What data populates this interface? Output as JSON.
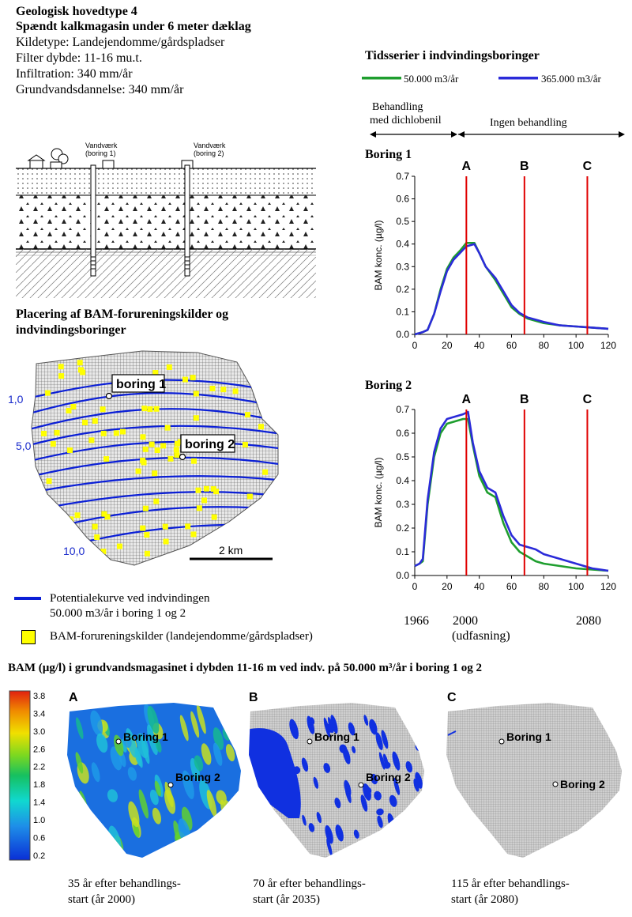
{
  "header": {
    "title1": "Geologisk hovedtype 4",
    "title2": "Spændt kalkmagasin under 6 meter dæklag",
    "kildetype": "Kildetype: Landejendomme/gårdspladser",
    "filter": "Filter dybde: 11-16 mu.t.",
    "infiltration": "Infiltration: 340 mm/år",
    "grundvand": "Grundvandsdannelse: 340 mm/år"
  },
  "profile": {
    "well1_label_a": "Vandværk",
    "well1_label_b": "(boring 1)",
    "well2_label_a": "Vandværk",
    "well2_label_b": "(boring 2)"
  },
  "map": {
    "title_line1": "Placering af BAM-forureningskilder og",
    "title_line2": "indvindingsboringer",
    "boring1": "boring 1",
    "boring2": "boring 2",
    "contour1": "1,0",
    "contour2": "5,0",
    "contour3": "10,0",
    "scale": "2 km",
    "legend_line_a": "Potentialekurve ved indvindingen",
    "legend_line_b": "50.000 m3/år i boring 1 og 2",
    "legend_square": "BAM-forureningskilder (landejendomme/gårdspladser)",
    "color_line": "#0b1fd6",
    "color_source": "#ffff00"
  },
  "ts_header": {
    "title": "Tidsserier i indvindingsboringer",
    "legend1": "50.000 m3/år",
    "legend2": "365.000 m3/år",
    "color1": "#1e9e2e",
    "color2": "#2b2bd9",
    "phase1_a": "Behandling",
    "phase1_b": "med dichlobenil",
    "phase2": "Ingen behandling",
    "year1": "1966",
    "year2": "2000",
    "year2_note": "(udfasning)",
    "year3": "2080"
  },
  "chart_data": [
    {
      "type": "line",
      "title": "Boring 1",
      "ylabel": "BAM konc. (µg/l)",
      "xlabel": "",
      "xlim": [
        0,
        120
      ],
      "ylim": [
        0,
        0.7
      ],
      "xticks": [
        "0",
        "20",
        "40",
        "60",
        "80",
        "100",
        "120"
      ],
      "yticks": [
        "0.0",
        "0.1",
        "0.2",
        "0.3",
        "0.4",
        "0.5",
        "0.6",
        "0.7"
      ],
      "markers": [
        {
          "label": "A",
          "x": 32
        },
        {
          "label": "B",
          "x": 68
        },
        {
          "label": "C",
          "x": 107
        }
      ],
      "series": [
        {
          "name": "50.000 m3/år",
          "x": [
            0,
            5,
            8,
            12,
            16,
            20,
            24,
            28,
            32,
            37,
            40,
            44,
            50,
            55,
            60,
            65,
            70,
            75,
            80,
            90,
            100,
            110,
            120
          ],
          "values": [
            0,
            0.01,
            0.02,
            0.09,
            0.2,
            0.29,
            0.34,
            0.37,
            0.405,
            0.405,
            0.36,
            0.3,
            0.24,
            0.18,
            0.12,
            0.09,
            0.07,
            0.06,
            0.05,
            0.04,
            0.035,
            0.03,
            0.025
          ]
        },
        {
          "name": "365.000 m3/år",
          "x": [
            0,
            5,
            8,
            12,
            16,
            20,
            24,
            28,
            32,
            37,
            40,
            44,
            50,
            55,
            60,
            65,
            70,
            75,
            80,
            90,
            100,
            110,
            120
          ],
          "values": [
            0,
            0.01,
            0.02,
            0.09,
            0.19,
            0.28,
            0.33,
            0.36,
            0.39,
            0.4,
            0.36,
            0.3,
            0.25,
            0.19,
            0.13,
            0.095,
            0.075,
            0.065,
            0.055,
            0.04,
            0.035,
            0.03,
            0.025
          ]
        }
      ]
    },
    {
      "type": "line",
      "title": "Boring 2",
      "ylabel": "BAM konc. (µg/l)",
      "xlabel": "",
      "xlim": [
        0,
        120
      ],
      "ylim": [
        0,
        0.7
      ],
      "xticks": [
        "0",
        "20",
        "40",
        "60",
        "80",
        "100",
        "120"
      ],
      "yticks": [
        "0.0",
        "0.1",
        "0.2",
        "0.3",
        "0.4",
        "0.5",
        "0.6",
        "0.7"
      ],
      "markers": [
        {
          "label": "A",
          "x": 32
        },
        {
          "label": "B",
          "x": 68
        },
        {
          "label": "C",
          "x": 107
        }
      ],
      "series": [
        {
          "name": "50.000 m3/år",
          "x": [
            0,
            3,
            5,
            8,
            12,
            16,
            20,
            25,
            30,
            33,
            36,
            40,
            45,
            50,
            55,
            60,
            65,
            70,
            75,
            80,
            90,
            100,
            110,
            120
          ],
          "values": [
            0.04,
            0.05,
            0.06,
            0.3,
            0.5,
            0.6,
            0.64,
            0.65,
            0.66,
            0.66,
            0.55,
            0.42,
            0.35,
            0.33,
            0.22,
            0.14,
            0.1,
            0.08,
            0.06,
            0.05,
            0.04,
            0.03,
            0.025,
            0.02
          ]
        },
        {
          "name": "365.000 m3/år",
          "x": [
            0,
            3,
            5,
            8,
            12,
            16,
            20,
            25,
            30,
            33,
            36,
            40,
            45,
            50,
            55,
            60,
            65,
            70,
            75,
            80,
            90,
            100,
            110,
            120
          ],
          "values": [
            0.04,
            0.05,
            0.07,
            0.32,
            0.52,
            0.62,
            0.66,
            0.67,
            0.68,
            0.69,
            0.56,
            0.44,
            0.37,
            0.35,
            0.25,
            0.17,
            0.13,
            0.12,
            0.11,
            0.09,
            0.07,
            0.05,
            0.03,
            0.02
          ]
        }
      ]
    }
  ],
  "bottom": {
    "title": "BAM (µg/l) i grundvandsmagasinet i dybden 11-16 m ved indv. på 50.000 m³/år i boring 1 og 2",
    "colorbar_ticks": [
      "3.8",
      "3.4",
      "3.0",
      "2.6",
      "2.2",
      "1.8",
      "1.4",
      "1.0",
      "0.6",
      "0.2"
    ],
    "panels": [
      {
        "letter": "A",
        "boring1": "Boring 1",
        "boring2": "Boring 2",
        "cap1": "35 år efter behandlings-",
        "cap2": "start (år 2000)"
      },
      {
        "letter": "B",
        "boring1": "Boring 1",
        "boring2": "Boring 2",
        "cap1": "70 år efter behandlings-",
        "cap2": "start (år 2035)"
      },
      {
        "letter": "C",
        "boring1": "Boring 1",
        "boring2": "Boring 2",
        "cap1": "115 år efter behandlings-",
        "cap2": "start (år 2080)"
      }
    ]
  }
}
